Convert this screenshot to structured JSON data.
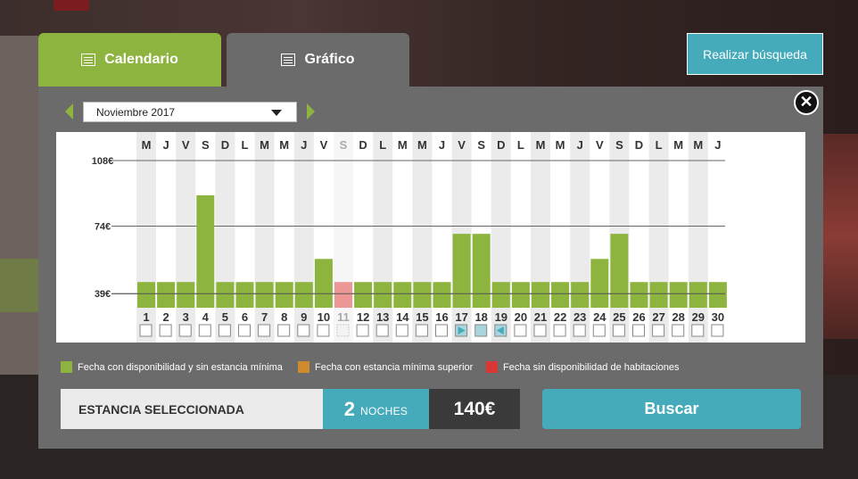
{
  "tabs": {
    "calendar": "Calendario",
    "chart": "Gráfico"
  },
  "search_button": "Realizar búsqueda",
  "close_symbol": "✕",
  "month_select": {
    "value": "Noviembre 2017"
  },
  "colors": {
    "available": "#8db43e",
    "min_stay": "#d08a2e",
    "unavailable": "#d93636",
    "unavailable_bar": "#ec9696",
    "accent": "#45abbb"
  },
  "legend": [
    {
      "label": "Fecha con disponibilidad y sin estancia mínima",
      "color": "#8db43e"
    },
    {
      "label": "Fecha con estancia mínima superior",
      "color": "#d08a2e"
    },
    {
      "label": "Fecha sin disponibilidad de habitaciones",
      "color": "#d93636"
    }
  ],
  "chart_data": {
    "type": "bar",
    "categories": [
      "1",
      "2",
      "3",
      "4",
      "5",
      "6",
      "7",
      "8",
      "9",
      "10",
      "11",
      "12",
      "13",
      "14",
      "15",
      "16",
      "17",
      "18",
      "19",
      "20",
      "21",
      "22",
      "23",
      "24",
      "25",
      "26",
      "27",
      "28",
      "29",
      "30"
    ],
    "weekdays": [
      "M",
      "J",
      "V",
      "S",
      "D",
      "L",
      "M",
      "M",
      "J",
      "V",
      "S",
      "D",
      "L",
      "M",
      "M",
      "J",
      "V",
      "S",
      "D",
      "L",
      "M",
      "M",
      "J",
      "V",
      "S",
      "D",
      "L",
      "M",
      "M",
      "J"
    ],
    "values": [
      45,
      45,
      45,
      90,
      45,
      45,
      45,
      45,
      45,
      57,
      45,
      45,
      45,
      45,
      45,
      45,
      70,
      70,
      45,
      45,
      45,
      45,
      45,
      57,
      70,
      45,
      45,
      45,
      45,
      45
    ],
    "status": [
      "available",
      "available",
      "available",
      "available",
      "available",
      "available",
      "available",
      "available",
      "available",
      "available",
      "unavailable",
      "available",
      "available",
      "available",
      "available",
      "available",
      "available",
      "available",
      "available",
      "available",
      "available",
      "available",
      "available",
      "available",
      "available",
      "available",
      "available",
      "available",
      "available",
      "available"
    ],
    "selected": {
      "start": 17,
      "middle": 18,
      "end": 19
    },
    "y_ticks": [
      "108€",
      "74€",
      "39€"
    ],
    "y_tick_values": [
      108,
      74,
      39
    ],
    "ylim": [
      34,
      108
    ],
    "grid": true
  },
  "summary": {
    "label": "ESTANCIA SELECCIONADA",
    "nights_count": "2",
    "nights_label": "NOCHES",
    "price": "140€"
  },
  "buscar_button": "Buscar"
}
